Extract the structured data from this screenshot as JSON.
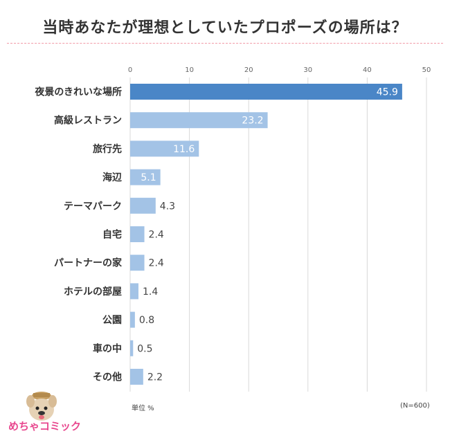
{
  "title": "当時あなたが理想としていたプロポーズの場所は？",
  "notes": {
    "unit": "単位 %",
    "sample": "(N=600)"
  },
  "logo": {
    "text": "めちゃコミック",
    "icon": "dog-mascot-icon"
  },
  "chart_data": {
    "type": "bar",
    "orientation": "horizontal",
    "title": "当時あなたが理想としていたプロポーズの場所は？",
    "categories": [
      "夜景のきれいな場所",
      "高級レストラン",
      "旅行先",
      "海辺",
      "テーマパーク",
      "自宅",
      "パートナーの家",
      "ホテルの部屋",
      "公園",
      "車の中",
      "その他"
    ],
    "values": [
      45.9,
      23.2,
      11.6,
      5.1,
      4.3,
      2.4,
      2.4,
      1.4,
      0.8,
      0.5,
      2.2
    ],
    "value_labels": [
      "45.9",
      "23.2",
      "11.6",
      "5.1",
      "4.3",
      "2.4",
      "2.4",
      "1.4",
      "0.8",
      "0.5",
      "2.2"
    ],
    "xlim": [
      0,
      50
    ],
    "xticks": [
      0,
      10,
      20,
      30,
      40,
      50
    ],
    "xtick_labels": [
      "0",
      "10",
      "20",
      "30",
      "40",
      "50"
    ],
    "xtick_position": "top",
    "grid": true,
    "colors": {
      "highlight": "#4a86c7",
      "bar": "#a3c3e6",
      "grid": "#d9d9d9",
      "label_inside": "#ffffff",
      "label_outside": "#444444"
    }
  }
}
